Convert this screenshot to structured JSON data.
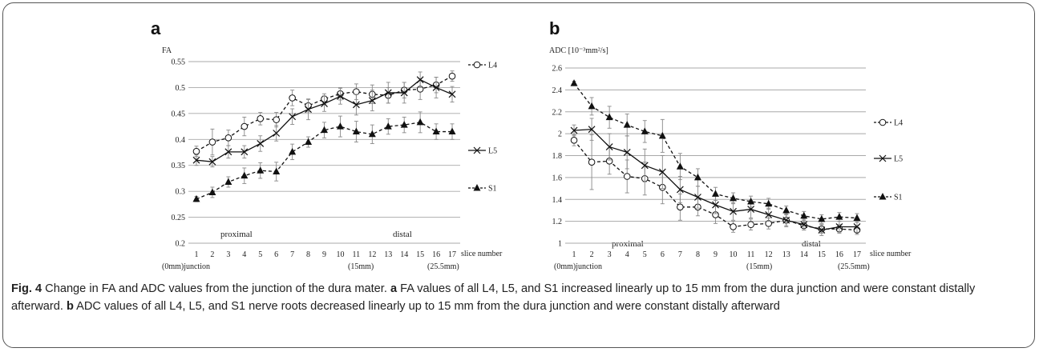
{
  "figure": {
    "caption_label": "Fig. 4",
    "caption_title": "Change in FA and ADC values from the junction of the dura mater.",
    "caption_a_letter": "a",
    "caption_a_text": "FA values of all L4, L5, and S1 increased linearly up to 15 mm from the dura junction and were constant distally afterward.",
    "caption_b_letter": "b",
    "caption_b_text": "ADC values of all L4, L5, and S1 nerve roots decreased linearly up to 15 mm from the dura junction and were constant distally afterward"
  },
  "chart_data": [
    {
      "panel": "a",
      "type": "line",
      "ylabel": "FA",
      "xlabel": "slice number",
      "x": [
        1,
        2,
        3,
        4,
        5,
        6,
        7,
        8,
        9,
        10,
        11,
        12,
        13,
        14,
        15,
        16,
        17
      ],
      "ylim": [
        0.2,
        0.55
      ],
      "yticks": [
        "0.2",
        "0.25",
        "0.3",
        "0.35",
        "0.4",
        "0.45",
        "0.5",
        "0.55"
      ],
      "grid": true,
      "legend": "right",
      "region_labels": [
        "proximal",
        "distal"
      ],
      "x_annotations": [
        "(0mm)junction",
        "(15mm)",
        "(25.5mm)"
      ],
      "series": [
        {
          "name": "L4",
          "marker": "open-circle",
          "style": "dashed",
          "values": [
            0.377,
            0.395,
            0.403,
            0.425,
            0.44,
            0.438,
            0.48,
            0.465,
            0.478,
            0.488,
            0.492,
            0.487,
            0.485,
            0.495,
            0.497,
            0.505,
            0.522
          ],
          "errors": [
            0.01,
            0.025,
            0.015,
            0.018,
            0.012,
            0.014,
            0.015,
            0.012,
            0.01,
            0.012,
            0.015,
            0.018,
            0.015,
            0.015,
            0.02,
            0.015,
            0.01
          ]
        },
        {
          "name": "L5",
          "marker": "x",
          "style": "solid",
          "values": [
            0.36,
            0.357,
            0.376,
            0.376,
            0.392,
            0.412,
            0.444,
            0.458,
            0.469,
            0.483,
            0.467,
            0.475,
            0.49,
            0.49,
            0.515,
            0.5,
            0.487
          ],
          "errors": [
            0.01,
            0.01,
            0.012,
            0.012,
            0.015,
            0.015,
            0.015,
            0.02,
            0.015,
            0.015,
            0.02,
            0.02,
            0.02,
            0.02,
            0.015,
            0.02,
            0.015
          ]
        },
        {
          "name": "S1",
          "marker": "filled-triangle",
          "style": "dashed",
          "values": [
            0.285,
            0.298,
            0.318,
            0.33,
            0.34,
            0.338,
            0.376,
            0.395,
            0.418,
            0.425,
            0.415,
            0.41,
            0.425,
            0.428,
            0.433,
            0.415,
            0.415
          ],
          "errors": [
            0.005,
            0.01,
            0.01,
            0.015,
            0.015,
            0.018,
            0.015,
            0.01,
            0.015,
            0.02,
            0.02,
            0.018,
            0.015,
            0.015,
            0.02,
            0.015,
            0.015
          ]
        }
      ]
    },
    {
      "panel": "b",
      "type": "line",
      "ylabel": "ADC  [10⁻³mm²/s]",
      "xlabel": "slice number",
      "x": [
        1,
        2,
        3,
        4,
        5,
        6,
        7,
        8,
        9,
        10,
        11,
        12,
        13,
        14,
        15,
        16,
        17
      ],
      "ylim": [
        1.0,
        2.6
      ],
      "yticks": [
        "1",
        "1.2",
        "1.4",
        "1.6",
        "1.8",
        "2",
        "2.2",
        "2.4",
        "2.6"
      ],
      "grid": true,
      "legend": "right",
      "region_labels": [
        "proximal",
        "distal"
      ],
      "x_annotations": [
        "(0mm)junction",
        "(15mm)",
        "(25.5mm)"
      ],
      "series": [
        {
          "name": "L4",
          "marker": "open-circle",
          "style": "dashed",
          "values": [
            1.94,
            1.74,
            1.75,
            1.61,
            1.59,
            1.51,
            1.33,
            1.33,
            1.26,
            1.15,
            1.17,
            1.18,
            1.21,
            1.16,
            1.13,
            1.13,
            1.12
          ],
          "errors": [
            0.05,
            0.25,
            0.12,
            0.15,
            0.15,
            0.15,
            0.12,
            0.08,
            0.08,
            0.05,
            0.05,
            0.05,
            0.05,
            0.04,
            0.04,
            0.04,
            0.04
          ]
        },
        {
          "name": "L5",
          "marker": "x",
          "style": "solid",
          "values": [
            2.03,
            2.04,
            1.88,
            1.83,
            1.71,
            1.65,
            1.49,
            1.42,
            1.35,
            1.29,
            1.31,
            1.26,
            1.21,
            1.17,
            1.12,
            1.15,
            1.15
          ],
          "errors": [
            0.05,
            0.1,
            0.12,
            0.15,
            0.15,
            0.15,
            0.12,
            0.1,
            0.08,
            0.08,
            0.08,
            0.06,
            0.06,
            0.05,
            0.05,
            0.05,
            0.05
          ]
        },
        {
          "name": "S1",
          "marker": "filled-triangle",
          "style": "dashed",
          "values": [
            2.46,
            2.25,
            2.15,
            2.08,
            2.02,
            1.98,
            1.7,
            1.6,
            1.45,
            1.41,
            1.38,
            1.36,
            1.3,
            1.25,
            1.22,
            1.24,
            1.23
          ],
          "errors": [
            0.02,
            0.08,
            0.1,
            0.1,
            0.1,
            0.15,
            0.12,
            0.08,
            0.06,
            0.05,
            0.05,
            0.05,
            0.04,
            0.04,
            0.04,
            0.04,
            0.04
          ]
        }
      ]
    }
  ]
}
